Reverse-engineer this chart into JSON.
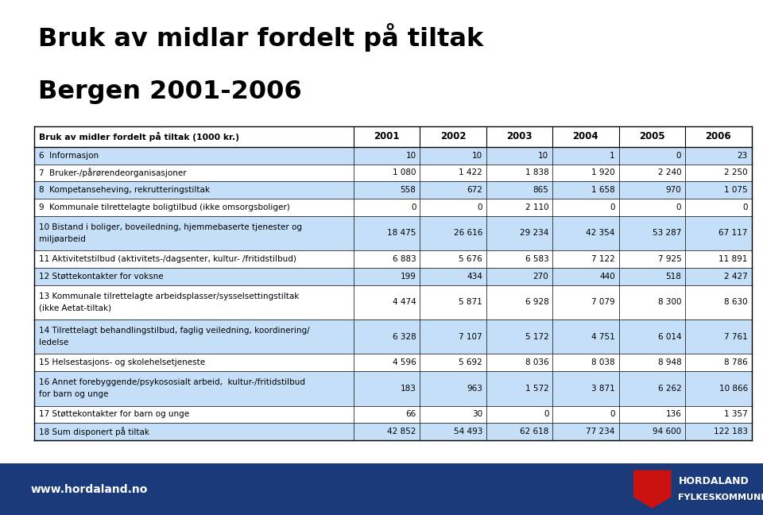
{
  "title_line1": "Bruk av midlar fordelt på tiltak",
  "title_line2": "Bergen 2001-2006",
  "header_col": "Bruk av midler fordelt på tiltak (1000 kr.)",
  "years": [
    "2001",
    "2002",
    "2003",
    "2004",
    "2005",
    "2006"
  ],
  "rows": [
    {
      "label": "6  Informasjon",
      "values": [
        "10",
        "10",
        "10",
        "1",
        "0",
        "23"
      ],
      "bg": "#c5dff8",
      "multiline": false
    },
    {
      "label": "7  Bruker-/pårørendeorganisasjoner",
      "values": [
        "1 080",
        "1 422",
        "1 838",
        "1 920",
        "2 240",
        "2 250"
      ],
      "bg": "#ffffff",
      "multiline": false
    },
    {
      "label": "8  Kompetanseheving, rekrutteringstiltak",
      "values": [
        "558",
        "672",
        "865",
        "1 658",
        "970",
        "1 075"
      ],
      "bg": "#c5dff8",
      "multiline": false
    },
    {
      "label": "9  Kommunale tilrettelagte boligtilbud (ikke omsorgsboliger)",
      "values": [
        "0",
        "0",
        "2 110",
        "0",
        "0",
        "0"
      ],
      "bg": "#ffffff",
      "multiline": false
    },
    {
      "label1": "10 Bistand i boliger, boveiledning, hjemmebaserte tjenester og",
      "label2": "miljøarbeid",
      "values": [
        "18 475",
        "26 616",
        "29 234",
        "42 354",
        "53 287",
        "67 117"
      ],
      "bg": "#c5dff8",
      "multiline": true
    },
    {
      "label": "11 Aktivitetstilbud (aktivitets-/dagsenter, kultur- /fritidstilbud)",
      "values": [
        "6 883",
        "5 676",
        "6 583",
        "7 122",
        "7 925",
        "11 891"
      ],
      "bg": "#ffffff",
      "multiline": false
    },
    {
      "label": "12 Støttekontakter for voksne",
      "values": [
        "199",
        "434",
        "270",
        "440",
        "518",
        "2 427"
      ],
      "bg": "#c5dff8",
      "multiline": false
    },
    {
      "label1": "13 Kommunale tilrettelagte arbeidsplasser/sysselsettingstiltak",
      "label2": "(ikke Aetat-tiltak)",
      "values": [
        "4 474",
        "5 871",
        "6 928",
        "7 079",
        "8 300",
        "8 630"
      ],
      "bg": "#ffffff",
      "multiline": true
    },
    {
      "label1": "14 Tilrettelagt behandlingstilbud, faglig veiledning, koordinering/",
      "label2": "ledelse",
      "values": [
        "6 328",
        "7 107",
        "5 172",
        "4 751",
        "6 014",
        "7 761"
      ],
      "bg": "#c5dff8",
      "multiline": true
    },
    {
      "label": "15 Helsestasjons- og skolehelsetjeneste",
      "values": [
        "4 596",
        "5 692",
        "8 036",
        "8 038",
        "8 948",
        "8 786"
      ],
      "bg": "#ffffff",
      "multiline": false
    },
    {
      "label1": "16 Annet forebyggende/psykososialt arbeid,  kultur-/fritidstilbud",
      "label2": "for barn og unge",
      "values": [
        "183",
        "963",
        "1 572",
        "3 871",
        "6 262",
        "10 866"
      ],
      "bg": "#c5dff8",
      "multiline": true
    },
    {
      "label": "17 Støttekontakter for barn og unge",
      "values": [
        "66",
        "30",
        "0",
        "0",
        "136",
        "1 357"
      ],
      "bg": "#ffffff",
      "multiline": false
    },
    {
      "label": "18 Sum disponert på tiltak",
      "values": [
        "42 852",
        "54 493",
        "62 618",
        "77 234",
        "94 600",
        "122 183"
      ],
      "bg": "#c5dff8",
      "multiline": false
    }
  ],
  "footer_bg": "#1a3a7a",
  "footer_text": "www.hordaland.no",
  "footer_text_color": "#ffffff",
  "title_color": "#000000",
  "background_color": "#ffffff"
}
